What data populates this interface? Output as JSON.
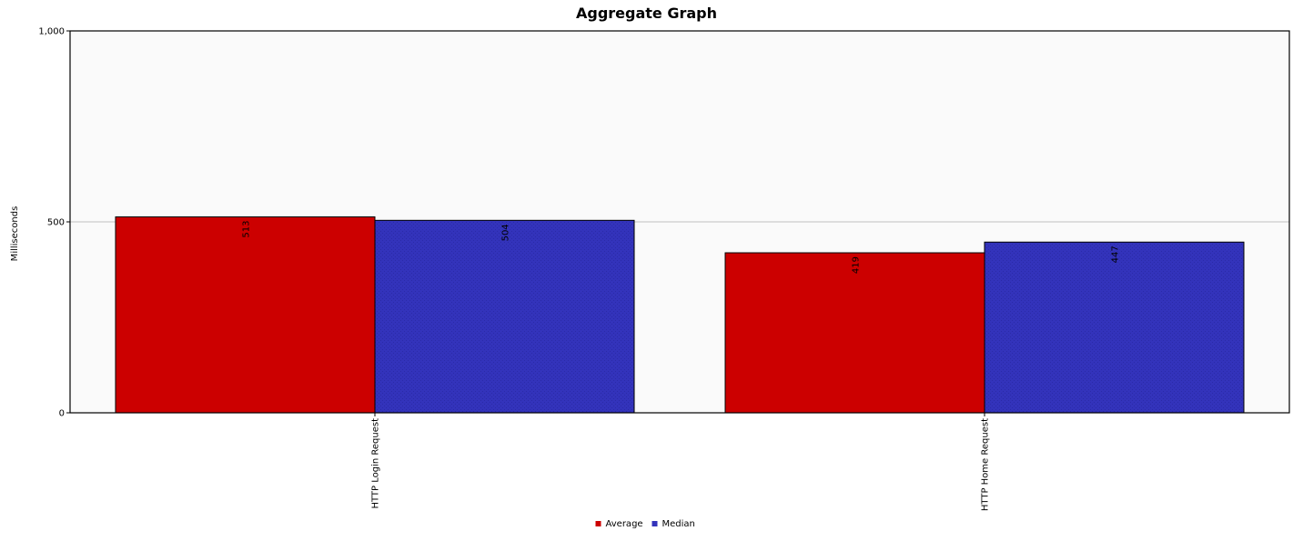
{
  "chart_data": {
    "type": "bar",
    "title": "Aggregate Graph",
    "xlabel": "",
    "ylabel": "Milliseconds",
    "ylim": [
      0,
      1000
    ],
    "yticks": [
      {
        "value": 0,
        "label": "0"
      },
      {
        "value": 500,
        "label": "500"
      },
      {
        "value": 1000,
        "label": "1,000"
      }
    ],
    "grid": true,
    "legend_position": "bottom",
    "categories": [
      "HTTP Login Request",
      "HTTP Home Request"
    ],
    "series": [
      {
        "name": "Average",
        "color": "#cc0000",
        "values": [
          513,
          419
        ]
      },
      {
        "name": "Median",
        "color": "#3333bb",
        "values": [
          504,
          447
        ]
      }
    ],
    "plot_background": "#fafafa",
    "gridline_color": "#c0c0c0"
  }
}
